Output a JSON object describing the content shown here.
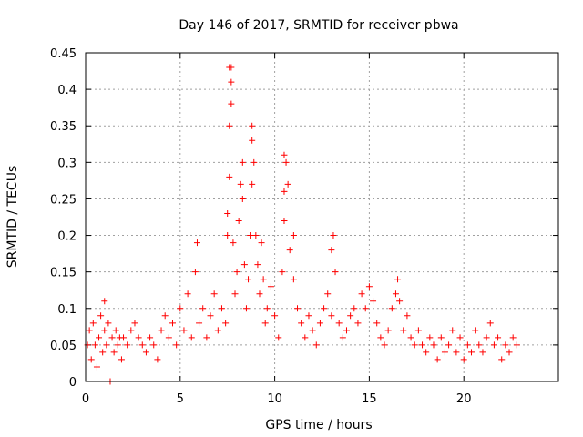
{
  "chart_data": {
    "type": "scatter",
    "title": "Day 146 of 2017, SRMTID for receiver pbwa",
    "xlabel": "GPS time / hours",
    "ylabel": "SRMTID / TECUs",
    "xlim": [
      0,
      25
    ],
    "ylim": [
      0,
      0.45
    ],
    "xticks": [
      0,
      5,
      10,
      15,
      20
    ],
    "xtick_labels": [
      "0",
      "5",
      "10",
      "15",
      "20"
    ],
    "yticks": [
      0,
      0.05,
      0.1,
      0.15,
      0.2,
      0.25,
      0.3,
      0.35,
      0.4,
      0.45
    ],
    "ytick_labels": [
      "0",
      "0.05",
      "0.1",
      "0.15",
      "0.2",
      "0.25",
      "0.3",
      "0.35",
      "0.4",
      "0.45"
    ],
    "grid": true,
    "marker": "plus",
    "color": "#ff0000",
    "series": [
      {
        "name": "SRMTID",
        "points": [
          [
            0.1,
            0.05
          ],
          [
            0.2,
            0.07
          ],
          [
            0.3,
            0.03
          ],
          [
            0.4,
            0.08
          ],
          [
            0.5,
            0.05
          ],
          [
            0.6,
            0.02
          ],
          [
            0.7,
            0.06
          ],
          [
            0.8,
            0.09
          ],
          [
            0.9,
            0.04
          ],
          [
            1.0,
            0.07
          ],
          [
            1.1,
            0.05
          ],
          [
            1.2,
            0.08
          ],
          [
            1.0,
            0.11
          ],
          [
            1.3,
            0.0
          ],
          [
            1.4,
            0.06
          ],
          [
            1.5,
            0.04
          ],
          [
            1.6,
            0.07
          ],
          [
            1.7,
            0.05
          ],
          [
            1.8,
            0.06
          ],
          [
            1.9,
            0.03
          ],
          [
            2.0,
            0.06
          ],
          [
            2.2,
            0.05
          ],
          [
            2.4,
            0.07
          ],
          [
            2.6,
            0.08
          ],
          [
            2.8,
            0.06
          ],
          [
            3.0,
            0.05
          ],
          [
            3.2,
            0.04
          ],
          [
            3.4,
            0.06
          ],
          [
            3.6,
            0.05
          ],
          [
            3.8,
            0.03
          ],
          [
            4.0,
            0.07
          ],
          [
            4.2,
            0.09
          ],
          [
            4.4,
            0.06
          ],
          [
            4.6,
            0.08
          ],
          [
            4.8,
            0.05
          ],
          [
            5.0,
            0.1
          ],
          [
            5.2,
            0.07
          ],
          [
            5.4,
            0.12
          ],
          [
            5.6,
            0.06
          ],
          [
            5.8,
            0.15
          ],
          [
            5.9,
            0.19
          ],
          [
            6.0,
            0.08
          ],
          [
            6.2,
            0.1
          ],
          [
            6.4,
            0.06
          ],
          [
            6.6,
            0.09
          ],
          [
            6.8,
            0.12
          ],
          [
            7.0,
            0.07
          ],
          [
            7.2,
            0.1
          ],
          [
            7.4,
            0.08
          ],
          [
            7.5,
            0.2
          ],
          [
            7.5,
            0.23
          ],
          [
            7.6,
            0.28
          ],
          [
            7.6,
            0.35
          ],
          [
            7.7,
            0.38
          ],
          [
            7.7,
            0.41
          ],
          [
            7.6,
            0.43
          ],
          [
            7.7,
            0.43
          ],
          [
            7.8,
            0.19
          ],
          [
            7.9,
            0.12
          ],
          [
            8.0,
            0.15
          ],
          [
            8.1,
            0.22
          ],
          [
            8.2,
            0.27
          ],
          [
            8.3,
            0.3
          ],
          [
            8.3,
            0.25
          ],
          [
            8.4,
            0.16
          ],
          [
            8.5,
            0.1
          ],
          [
            8.6,
            0.14
          ],
          [
            8.7,
            0.2
          ],
          [
            8.8,
            0.27
          ],
          [
            8.8,
            0.33
          ],
          [
            8.8,
            0.35
          ],
          [
            8.9,
            0.3
          ],
          [
            9.0,
            0.2
          ],
          [
            9.1,
            0.16
          ],
          [
            9.2,
            0.12
          ],
          [
            9.3,
            0.19
          ],
          [
            9.4,
            0.14
          ],
          [
            9.5,
            0.08
          ],
          [
            9.6,
            0.1
          ],
          [
            9.8,
            0.13
          ],
          [
            10.0,
            0.09
          ],
          [
            10.2,
            0.06
          ],
          [
            10.4,
            0.15
          ],
          [
            10.5,
            0.22
          ],
          [
            10.5,
            0.26
          ],
          [
            10.5,
            0.31
          ],
          [
            10.6,
            0.3
          ],
          [
            10.7,
            0.27
          ],
          [
            10.8,
            0.18
          ],
          [
            11.0,
            0.14
          ],
          [
            11.0,
            0.2
          ],
          [
            11.2,
            0.1
          ],
          [
            11.4,
            0.08
          ],
          [
            11.6,
            0.06
          ],
          [
            11.8,
            0.09
          ],
          [
            12.0,
            0.07
          ],
          [
            12.2,
            0.05
          ],
          [
            12.4,
            0.08
          ],
          [
            12.6,
            0.1
          ],
          [
            12.8,
            0.12
          ],
          [
            13.0,
            0.09
          ],
          [
            13.0,
            0.18
          ],
          [
            13.1,
            0.2
          ],
          [
            13.2,
            0.15
          ],
          [
            13.4,
            0.08
          ],
          [
            13.6,
            0.06
          ],
          [
            13.8,
            0.07
          ],
          [
            14.0,
            0.09
          ],
          [
            14.2,
            0.1
          ],
          [
            14.4,
            0.08
          ],
          [
            14.6,
            0.12
          ],
          [
            14.8,
            0.1
          ],
          [
            15.0,
            0.13
          ],
          [
            15.2,
            0.11
          ],
          [
            15.4,
            0.08
          ],
          [
            15.6,
            0.06
          ],
          [
            15.8,
            0.05
          ],
          [
            16.0,
            0.07
          ],
          [
            16.2,
            0.1
          ],
          [
            16.4,
            0.12
          ],
          [
            16.5,
            0.14
          ],
          [
            16.6,
            0.11
          ],
          [
            16.8,
            0.07
          ],
          [
            17.0,
            0.09
          ],
          [
            17.2,
            0.06
          ],
          [
            17.4,
            0.05
          ],
          [
            17.6,
            0.07
          ],
          [
            17.8,
            0.05
          ],
          [
            18.0,
            0.04
          ],
          [
            18.2,
            0.06
          ],
          [
            18.4,
            0.05
          ],
          [
            18.6,
            0.03
          ],
          [
            18.8,
            0.06
          ],
          [
            19.0,
            0.04
          ],
          [
            19.2,
            0.05
          ],
          [
            19.4,
            0.07
          ],
          [
            19.6,
            0.04
          ],
          [
            19.8,
            0.06
          ],
          [
            20.0,
            0.03
          ],
          [
            20.2,
            0.05
          ],
          [
            20.4,
            0.04
          ],
          [
            20.6,
            0.07
          ],
          [
            20.8,
            0.05
          ],
          [
            21.0,
            0.04
          ],
          [
            21.2,
            0.06
          ],
          [
            21.4,
            0.08
          ],
          [
            21.6,
            0.05
          ],
          [
            21.8,
            0.06
          ],
          [
            22.0,
            0.03
          ],
          [
            22.2,
            0.05
          ],
          [
            22.4,
            0.04
          ],
          [
            22.6,
            0.06
          ],
          [
            22.8,
            0.05
          ]
        ]
      }
    ]
  }
}
